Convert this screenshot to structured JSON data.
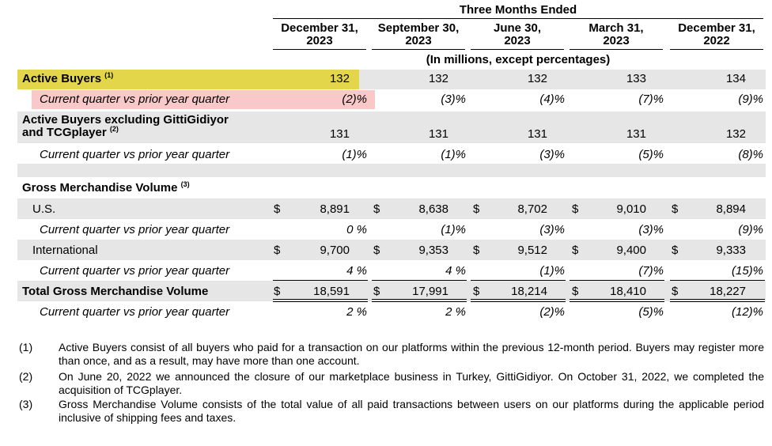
{
  "header": {
    "period_title": "Three Months Ended",
    "units_note": "(In millions, except percentages)",
    "columns": [
      {
        "line1": "December 31,",
        "line2": "2023"
      },
      {
        "line1": "September 30,",
        "line2": "2023"
      },
      {
        "line1": "June 30,",
        "line2": "2023"
      },
      {
        "line1": "March 31,",
        "line2": "2023"
      },
      {
        "line1": "December 31,",
        "line2": "2022"
      }
    ]
  },
  "rows": {
    "active_buyers": {
      "label": "Active Buyers",
      "sup": "(1)",
      "values": [
        "132",
        "132",
        "132",
        "133",
        "134"
      ]
    },
    "active_buyers_change": {
      "label": "Current quarter vs prior year quarter",
      "values": [
        "(2)%",
        "(3)%",
        "(4)%",
        "(7)%",
        "(9)%"
      ]
    },
    "active_buyers_ex": {
      "label_line1": "Active Buyers excluding GittiGidiyor",
      "label_line2": "and TCGplayer",
      "sup": "(2)",
      "values": [
        "131",
        "131",
        "131",
        "131",
        "132"
      ]
    },
    "active_buyers_ex_change": {
      "label": "Current quarter vs prior year quarter",
      "values": [
        "(1)%",
        "(1)%",
        "(3)%",
        "(5)%",
        "(8)%"
      ]
    },
    "gmv_heading": {
      "label": "Gross Merchandise Volume",
      "sup": "(3)"
    },
    "us": {
      "label": "U.S.",
      "currency": "$",
      "values": [
        "8,891",
        "8,638",
        "8,702",
        "9,010",
        "8,894"
      ]
    },
    "us_change": {
      "label": "Current quarter vs prior year quarter",
      "values": [
        "0 %",
        "(1)%",
        "(3)%",
        "(3)%",
        "(9)%"
      ]
    },
    "intl": {
      "label": "International",
      "currency": "$",
      "values": [
        "9,700",
        "9,353",
        "9,512",
        "9,400",
        "9,333"
      ]
    },
    "intl_change": {
      "label": "Current quarter vs prior year quarter",
      "values": [
        "4 %",
        "4 %",
        "(1)%",
        "(7)%",
        "(15)%"
      ]
    },
    "total": {
      "label": "Total Gross Merchandise Volume",
      "currency": "$",
      "values": [
        "18,591",
        "17,991",
        "18,214",
        "18,410",
        "18,227"
      ]
    },
    "total_change": {
      "label": "Current quarter vs prior year quarter",
      "values": [
        "2 %",
        "2 %",
        "(2)%",
        "(5)%",
        "(12)%"
      ]
    }
  },
  "footnotes": [
    {
      "num": "(1)",
      "text": "Active Buyers consist of all buyers who paid for a transaction on our platforms within the previous 12-month period. Buyers may register more than once, and as a result, may have more than one account."
    },
    {
      "num": "(2)",
      "text": "On June 20, 2022 we announced the closure of our marketplace business in Turkey, GittiGidiyor. On October 31, 2022, we completed the acquisition of TCGplayer."
    },
    {
      "num": "(3)",
      "text": "Gross Merchandise Volume consists of the total value of all paid transactions between users on our platforms during the applicable period inclusive of shipping fees and taxes."
    }
  ],
  "colors": {
    "highlight_yellow": "#e3d64a",
    "highlight_pink": "#f9c9c9",
    "band_gray": "#e6e6e6"
  }
}
